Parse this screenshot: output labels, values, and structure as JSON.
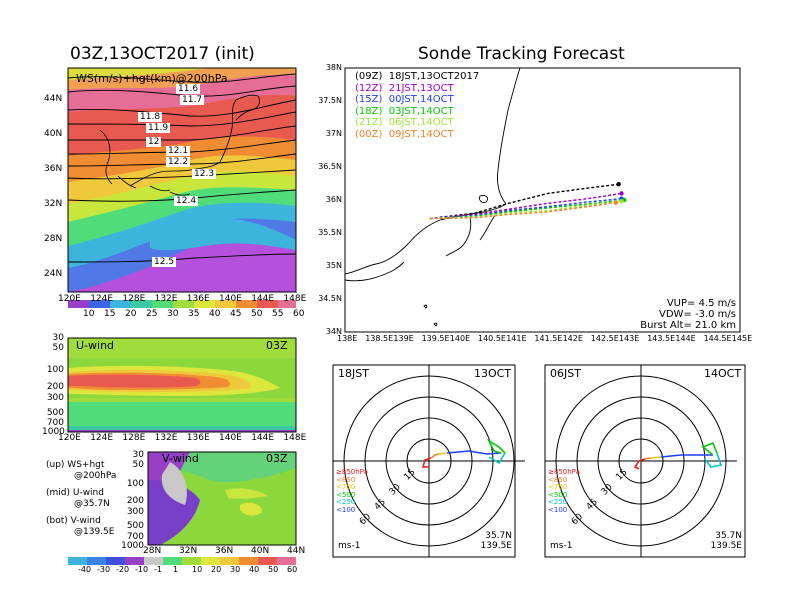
{
  "left_title": "03Z,13OCT2017 (init)",
  "right_title": "Sonde Tracking Forecast",
  "map_panel": {
    "label": "WS(m/s)+hgt(km)@200hPa",
    "contour_labels": [
      "11.6",
      "11.7",
      "11.8",
      "11.9",
      "12",
      "12.1",
      "12.2",
      "12.3",
      "12.4",
      "12.5"
    ],
    "x_ticks": [
      "120E",
      "124E",
      "128E",
      "132E",
      "136E",
      "140E",
      "144E",
      "148E"
    ],
    "y_ticks": [
      "44N",
      "40N",
      "36N",
      "32N",
      "28N",
      "24N"
    ],
    "colorbar": [
      "10",
      "15",
      "20",
      "25",
      "30",
      "35",
      "40",
      "45",
      "50",
      "55",
      "60"
    ]
  },
  "uwind_panel": {
    "label": "U-wind",
    "time": "03Z",
    "y_ticks": [
      "30",
      "50",
      "100",
      "200",
      "300",
      "500",
      "700",
      "1000"
    ],
    "x_ticks": [
      "120E",
      "124E",
      "128E",
      "132E",
      "136E",
      "140E",
      "144E",
      "148E"
    ]
  },
  "vwind_panel": {
    "label": "V-wind",
    "time": "03Z",
    "y_ticks": [
      "30",
      "50",
      "100",
      "200",
      "300",
      "500",
      "700",
      "1000"
    ],
    "x_ticks": [
      "28N",
      "32N",
      "36N",
      "40N",
      "44N"
    ],
    "colorbar": [
      "-40",
      "-30",
      "-20",
      "-10",
      "-1",
      "1",
      "10",
      "20",
      "30",
      "40",
      "50",
      "60"
    ]
  },
  "notes": [
    {
      "a": "(up) WS+hgt",
      "b": "@200hPa"
    },
    {
      "a": "(mid) U-wind",
      "b": "@35.7N"
    },
    {
      "a": "(bot) V-wind",
      "b": "@139.5E"
    }
  ],
  "track_panel": {
    "legend": [
      {
        "text": "(09Z)  18JST,13OCT2017",
        "color": "#000000"
      },
      {
        "text": "(12Z)  21JST,13OCT",
        "color": "#a000c8"
      },
      {
        "text": "(15Z)  00JST,14OCT",
        "color": "#1e3cff"
      },
      {
        "text": "(18Z)  03JST,14OCT",
        "color": "#00c800"
      },
      {
        "text": "(21Z)  06JST,14OCT",
        "color": "#a0e632"
      },
      {
        "text": "(00Z)  09JST,14OCT",
        "color": "#f08228"
      }
    ],
    "x_ticks": [
      "138E",
      "138.5E",
      "139E",
      "139.5E",
      "140E",
      "140.5E",
      "141E",
      "141.5E",
      "142E",
      "142.5E",
      "143E",
      "143.5E",
      "144E",
      "144.5E",
      "145E"
    ],
    "y_ticks": [
      "38N",
      "37.5N",
      "37N",
      "36.5N",
      "36N",
      "35.5N",
      "35N",
      "34.5N",
      "34N"
    ],
    "info": [
      "VUP=  4.5  m/s",
      "VDW= -3.0  m/s",
      "Burst Alt=  21.0  km"
    ]
  },
  "hodographs": [
    {
      "time": "18JST",
      "date": "13OCT",
      "lat": "35.7N",
      "lon": "139.5E",
      "unit": "ms-1",
      "ring_labels": [
        "15",
        "30",
        "45",
        "60"
      ],
      "legend": [
        {
          "text": "≥850hPa",
          "color": "#e61e1e"
        },
        {
          "text": "<850",
          "color": "#f08228"
        },
        {
          "text": "<700",
          "color": "#e6c800"
        },
        {
          "text": "<500",
          "color": "#00c800"
        },
        {
          "text": "<250",
          "color": "#00c8c8"
        },
        {
          "text": "<100",
          "color": "#1e3cff"
        }
      ]
    },
    {
      "time": "06JST",
      "date": "14OCT",
      "lat": "35.7N",
      "lon": "139.5E",
      "unit": "ms-1",
      "ring_labels": [
        "15",
        "30",
        "45",
        "60"
      ],
      "legend": [
        {
          "text": "≥850hPa",
          "color": "#e61e1e"
        },
        {
          "text": "<850",
          "color": "#f08228"
        },
        {
          "text": "<700",
          "color": "#e6c800"
        },
        {
          "text": "<500",
          "color": "#00c800"
        },
        {
          "text": "<250",
          "color": "#00c8c8"
        },
        {
          "text": "<100",
          "color": "#1e3cff"
        }
      ]
    }
  ]
}
